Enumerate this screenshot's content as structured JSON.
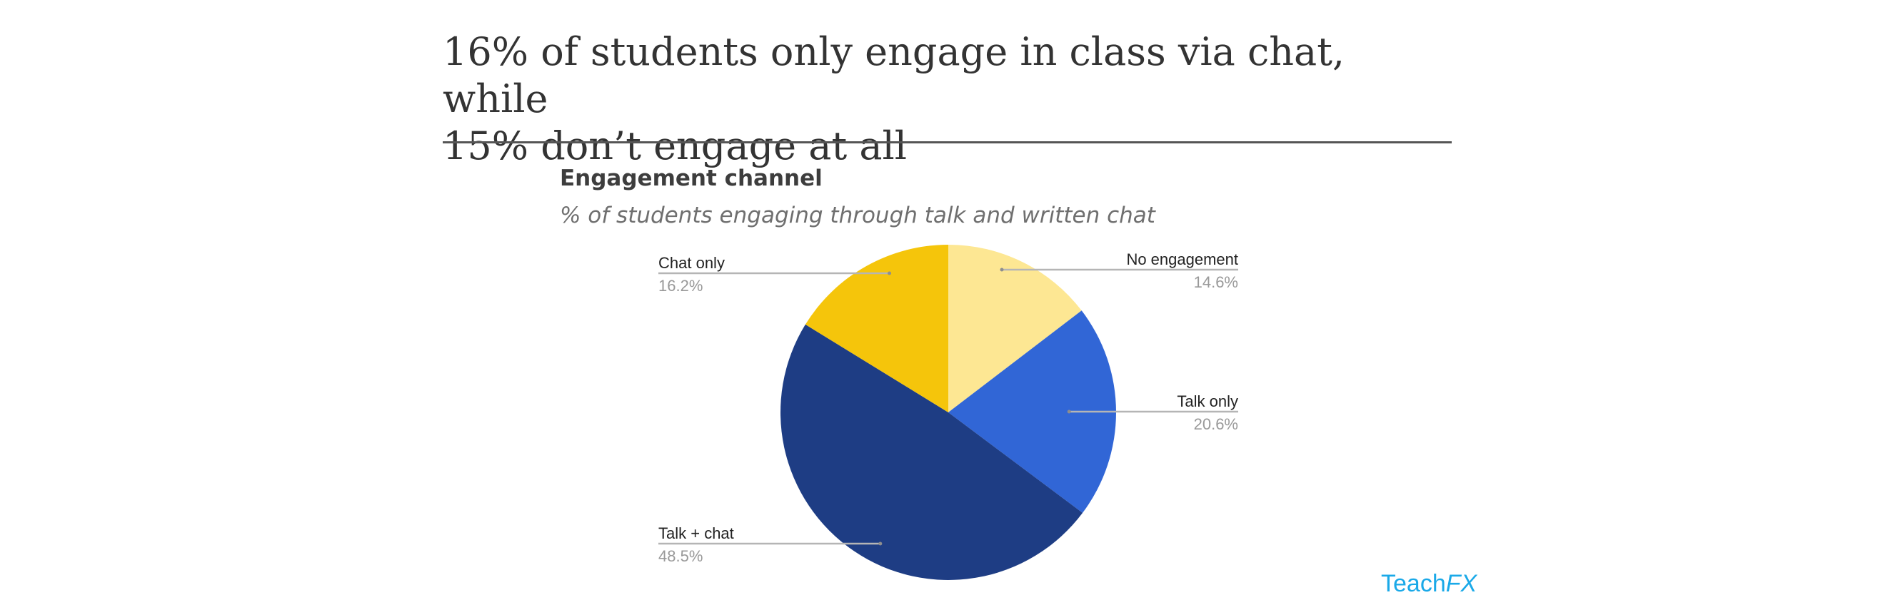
{
  "headline": {
    "line1": "16% of students only engage in class via chat, while",
    "line2": "15% don’t engage at all"
  },
  "brand": {
    "part1": "Teach",
    "part2": "FX",
    "color": "#1aa9e8"
  },
  "chart_data": {
    "type": "pie",
    "title": "Engagement channel",
    "subtitle": "% of students engaging through talk and written chat",
    "unit": "%",
    "start_angle_deg": 0,
    "direction": "clockwise",
    "slices": [
      {
        "label": "No engagement",
        "value": 14.6,
        "value_label": "14.6%",
        "color": "#fde793"
      },
      {
        "label": "Talk only",
        "value": 20.6,
        "value_label": "20.6%",
        "color": "#3166d6"
      },
      {
        "label": "Talk + chat",
        "value": 48.5,
        "value_label": "48.5%",
        "color": "#1e3d84"
      },
      {
        "label": "Chat only",
        "value": 16.2,
        "value_label": "16.2%",
        "color": "#f5c50b"
      }
    ],
    "legend": "none",
    "label_placement": "outside-with-leader-lines"
  }
}
